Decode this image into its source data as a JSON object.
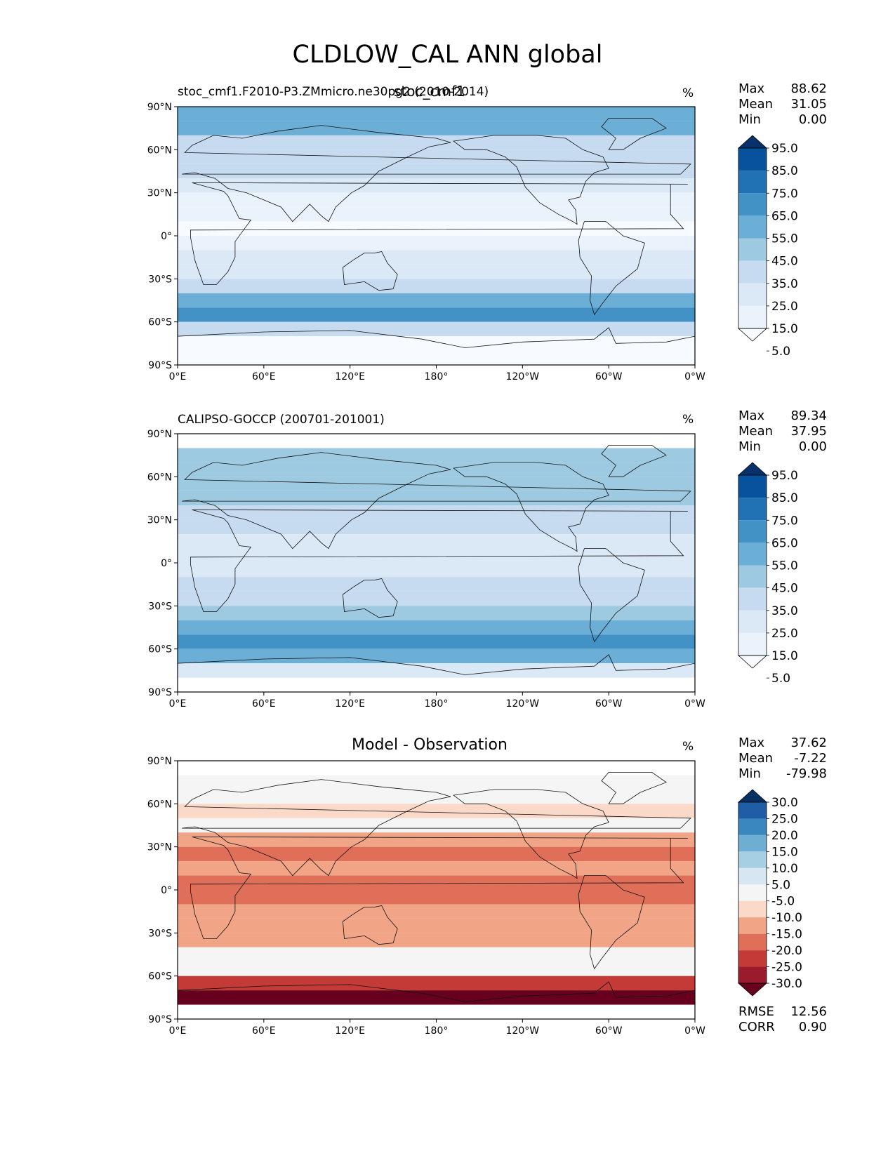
{
  "figure_title": "CLDLOW_CAL ANN global",
  "units": "%",
  "chart_data": [
    {
      "type": "heatmap",
      "panel": "model",
      "title_left": "stoc_cmf1.F2010-P3.ZMmicro.ne30pg2 (2010-2014)",
      "title_center": "stoc_cmf1",
      "units": "%",
      "stats": [
        {
          "label": "Max",
          "value": "88.62"
        },
        {
          "label": "Mean",
          "value": "31.05"
        },
        {
          "label": "Min",
          "value": "0.00"
        }
      ],
      "colorbar_ticks": [
        "95.0",
        "85.0",
        "75.0",
        "65.0",
        "55.0",
        "45.0",
        "35.0",
        "25.0",
        "15.0",
        "5.0"
      ],
      "colorbar_colors": [
        "#08306b",
        "#08519c",
        "#2171b5",
        "#4292c6",
        "#6baed6",
        "#9ecae1",
        "#c6dbef",
        "#dbe9f6",
        "#eaf2fb",
        "#f7fbff"
      ],
      "xticks": [
        "0°E",
        "60°E",
        "120°E",
        "180°",
        "120°W",
        "60°W",
        "0°W"
      ],
      "yticks": [
        "90°N",
        "60°N",
        "30°N",
        "0°",
        "30°S",
        "60°S",
        "90°S"
      ],
      "lat_range": [
        -90,
        90
      ],
      "lon_range": [
        0,
        360
      ],
      "zonal_mean_by_lat": {
        "lat": [
          85,
          75,
          65,
          55,
          45,
          35,
          25,
          15,
          5,
          -5,
          -15,
          -25,
          -35,
          -45,
          -55,
          -65,
          -75,
          -85
        ],
        "value": [
          55,
          55,
          35,
          42,
          40,
          32,
          22,
          18,
          12,
          15,
          25,
          30,
          40,
          58,
          65,
          35,
          5,
          3
        ]
      }
    },
    {
      "type": "heatmap",
      "panel": "observation",
      "title_left": "CALIPSO-GOCCP (200701-201001)",
      "units": "%",
      "stats": [
        {
          "label": "Max",
          "value": "89.34"
        },
        {
          "label": "Mean",
          "value": "37.95"
        },
        {
          "label": "Min",
          "value": "0.00"
        }
      ],
      "colorbar_ticks": [
        "95.0",
        "85.0",
        "75.0",
        "65.0",
        "55.0",
        "45.0",
        "35.0",
        "25.0",
        "15.0",
        "5.0"
      ],
      "colorbar_colors": [
        "#08306b",
        "#08519c",
        "#2171b5",
        "#4292c6",
        "#6baed6",
        "#9ecae1",
        "#c6dbef",
        "#dbe9f6",
        "#eaf2fb",
        "#f7fbff"
      ],
      "xticks": [
        "0°E",
        "60°E",
        "120°E",
        "180°",
        "120°W",
        "60°W",
        "0°W"
      ],
      "yticks": [
        "90°N",
        "60°N",
        "30°N",
        "0°",
        "30°S",
        "60°S",
        "90°S"
      ],
      "lat_range": [
        -90,
        90
      ],
      "lon_range": [
        0,
        360
      ],
      "zonal_mean_by_lat": {
        "lat": [
          85,
          75,
          65,
          55,
          45,
          35,
          25,
          15,
          5,
          -5,
          -15,
          -25,
          -35,
          -45,
          -55,
          -65,
          -75,
          -85
        ],
        "value": [
          null,
          52,
          48,
          50,
          48,
          42,
          38,
          32,
          30,
          32,
          38,
          42,
          50,
          62,
          65,
          58,
          25,
          null
        ]
      }
    },
    {
      "type": "heatmap",
      "panel": "difference",
      "title_center": "Model - Observation",
      "units": "%",
      "stats": [
        {
          "label": "Max",
          "value": "37.62"
        },
        {
          "label": "Mean",
          "value": "-7.22"
        },
        {
          "label": "Min",
          "value": "-79.98"
        }
      ],
      "metrics": [
        {
          "label": "RMSE",
          "value": "12.56"
        },
        {
          "label": "CORR",
          "value": "0.90"
        }
      ],
      "colorbar_ticks": [
        "30.0",
        "25.0",
        "20.0",
        "15.0",
        "10.0",
        "5.0",
        "-5.0",
        "-10.0",
        "-15.0",
        "-20.0",
        "-25.0",
        "-30.0"
      ],
      "colorbar_colors": [
        "#053061",
        "#1f5ea6",
        "#3a87c0",
        "#6faed3",
        "#a7cfe4",
        "#d6e7f1",
        "#f5f5f5",
        "#fad9c8",
        "#f1a486",
        "#df6f58",
        "#c33a37",
        "#9b1b2e",
        "#67001f"
      ],
      "xticks": [
        "0°E",
        "60°E",
        "120°E",
        "180°",
        "120°W",
        "60°W",
        "0°W"
      ],
      "yticks": [
        "90°N",
        "60°N",
        "30°N",
        "0°",
        "30°S",
        "60°S",
        "90°S"
      ],
      "lat_range": [
        -90,
        90
      ],
      "lon_range": [
        0,
        360
      ],
      "zonal_mean_by_lat": {
        "lat": [
          85,
          75,
          65,
          55,
          45,
          35,
          25,
          15,
          5,
          -5,
          -15,
          -25,
          -35,
          -45,
          -55,
          -65,
          -75,
          -85
        ],
        "value": [
          null,
          0,
          3,
          -5,
          -4,
          -10,
          -16,
          -14,
          -18,
          -17,
          -13,
          -12,
          -10,
          -2,
          0,
          -20,
          -30,
          null
        ]
      }
    }
  ]
}
